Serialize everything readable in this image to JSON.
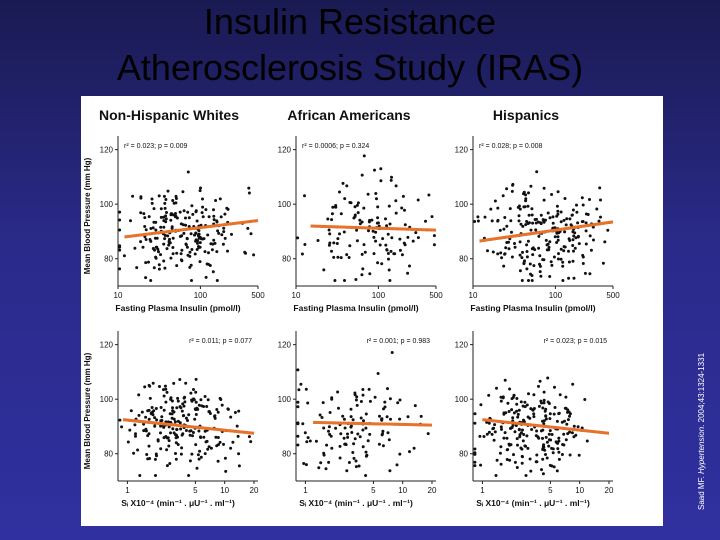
{
  "slide": {
    "title_line1": "Insulin Resistance",
    "title_line2": "Atherosclerosis Study (IRAS)",
    "citation_author": "Saad MF.",
    "citation_journal": "Hypertension",
    "citation_details": "2004;43:1324-1331"
  },
  "colors": {
    "fit_line": "#e8722a",
    "points": "#111111",
    "background_top": "#1a1a52"
  },
  "chart_data": {
    "type": "scatter",
    "groups": [
      "Non-Hispanic Whites",
      "African Americans",
      "Hispanics"
    ],
    "ylabel": "Mean Blood Pressure (mm Hg)",
    "rows": [
      {
        "xlabel": "Fasting Plasma Insulin (pmol/l)",
        "xscale": "log",
        "xlim": [
          10,
          500
        ],
        "xticks": [
          "10",
          "100",
          "500"
        ],
        "xtick_values": [
          10,
          100,
          500
        ],
        "ylim": [
          70,
          125
        ],
        "yticks": [
          80,
          100,
          120
        ],
        "panels": [
          {
            "group": "Non-Hispanic Whites",
            "stat": "r² = 0.023; p = 0.009",
            "fit_start": [
              12,
              88
            ],
            "fit_end": [
              500,
              94
            ],
            "center": 60,
            "spread": 0.35,
            "ymean": 90,
            "ysd": 8,
            "n": 230,
            "seed": 11
          },
          {
            "group": "African Americans",
            "stat": "r² = 0.0006; p = 0.324",
            "fit_start": [
              15,
              92
            ],
            "fit_end": [
              500,
              90.5
            ],
            "center": 70,
            "spread": 0.35,
            "ymean": 90,
            "ysd": 9,
            "n": 130,
            "seed": 23
          },
          {
            "group": "Hispanics",
            "stat": "r² = 0.028; p = 0.008",
            "fit_start": [
              12,
              86.5
            ],
            "fit_end": [
              500,
              93.5
            ],
            "center": 70,
            "spread": 0.33,
            "ymean": 90,
            "ysd": 9,
            "n": 230,
            "seed": 37
          }
        ]
      },
      {
        "xlabel": "Sᵢ X10⁻⁴ (min⁻¹ . μU⁻¹ . ml⁻¹)",
        "xscale": "log",
        "xlim": [
          0.8,
          22
        ],
        "xticks": [
          "1",
          "5",
          "10",
          "20"
        ],
        "xtick_values": [
          1,
          5,
          10,
          20
        ],
        "ylim": [
          70,
          125
        ],
        "yticks": [
          80,
          100,
          120
        ],
        "panels": [
          {
            "group": "Non-Hispanic Whites",
            "stat": "r² = 0.011; p = 0.077",
            "fit_start": [
              0.9,
              92.5
            ],
            "fit_end": [
              20,
              87.5
            ],
            "center": 3.5,
            "spread": 0.3,
            "ymean": 90,
            "ysd": 8,
            "n": 230,
            "seed": 51
          },
          {
            "group": "African Americans",
            "stat": "r² = 0.001; p = 0.983",
            "fit_start": [
              1.2,
              91.5
            ],
            "fit_end": [
              20,
              90.5
            ],
            "center": 3,
            "spread": 0.3,
            "ymean": 90,
            "ysd": 9,
            "n": 130,
            "seed": 63
          },
          {
            "group": "Hispanics",
            "stat": "r² = 0.023; p = 0.015",
            "fit_start": [
              1,
              92.5
            ],
            "fit_end": [
              20,
              87.5
            ],
            "center": 3,
            "spread": 0.28,
            "ymean": 90,
            "ysd": 8,
            "n": 230,
            "seed": 79
          }
        ]
      }
    ]
  }
}
